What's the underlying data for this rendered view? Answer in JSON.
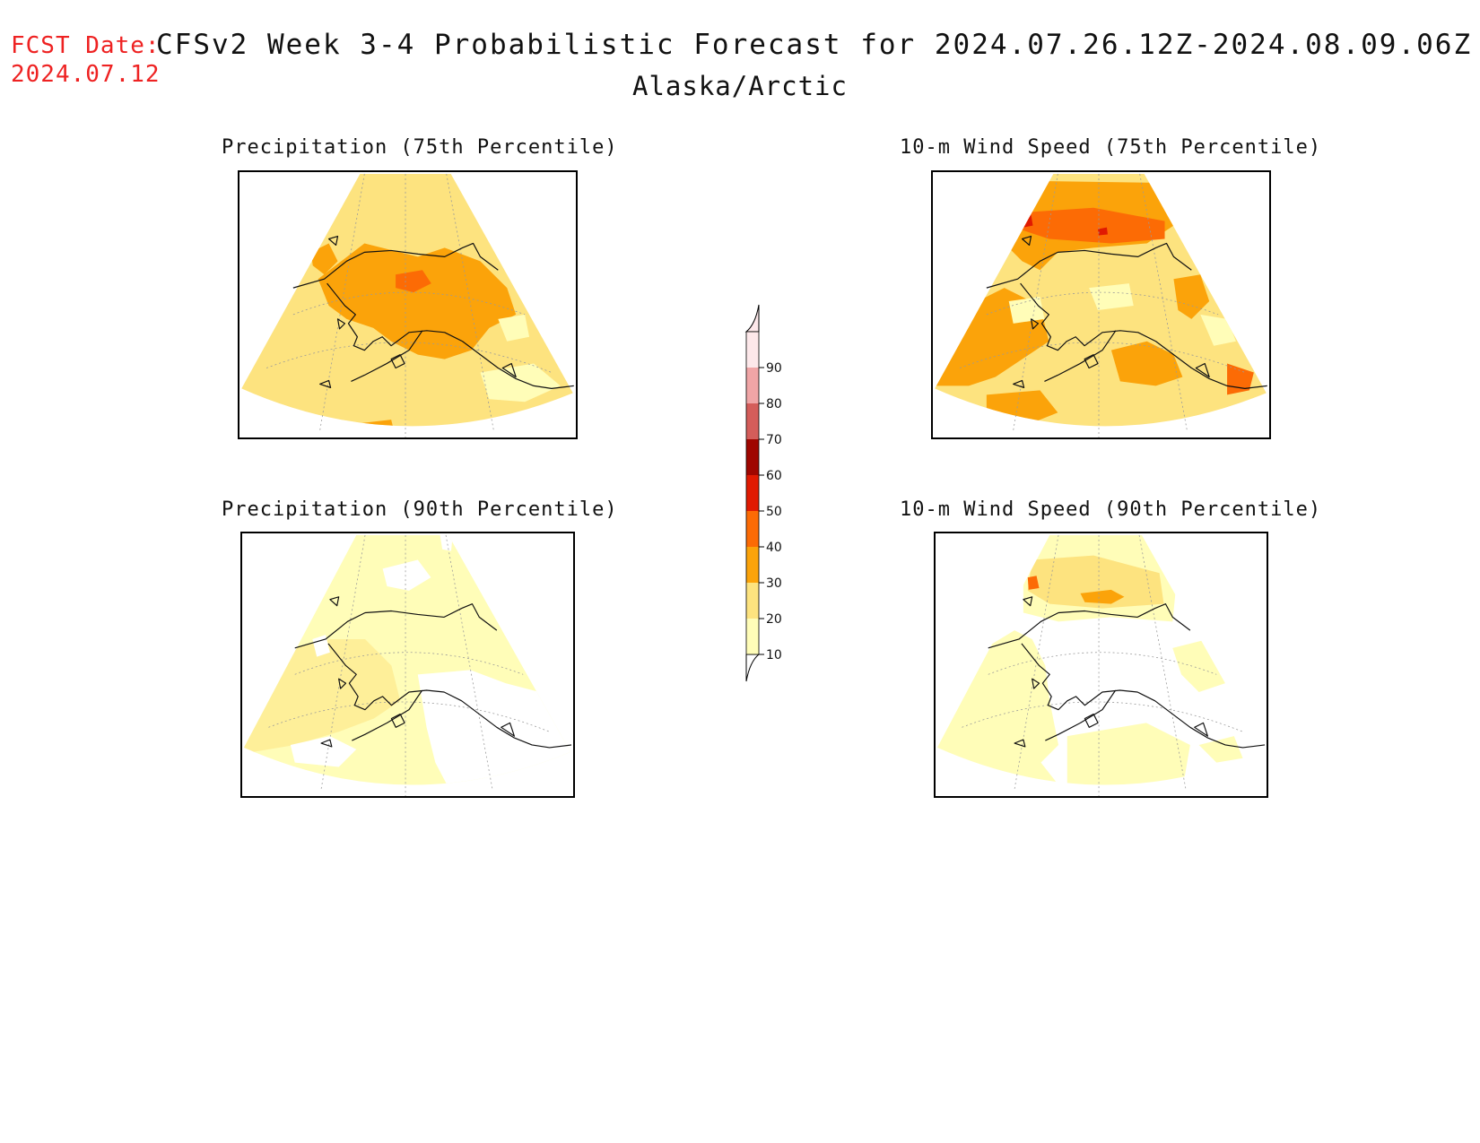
{
  "header": {
    "fcst_label": "FCST Date:",
    "fcst_date": "2024.07.12",
    "title": "CFSv2 Week 3-4 Probabilistic Forecast for 2024.07.26.12Z-2024.08.09.06Z",
    "subtitle": "Alaska/Arctic"
  },
  "panels": [
    {
      "title": "Precipitation (75th Percentile)",
      "dominant_category": "20-30",
      "max_category": "40-50"
    },
    {
      "title": "10-m Wind Speed (75th Percentile)",
      "dominant_category": "30-40",
      "max_category": "50-60"
    },
    {
      "title": "Precipitation (90th Percentile)",
      "dominant_category": "10-20",
      "max_category": "10-20"
    },
    {
      "title": "10-m Wind Speed (90th Percentile)",
      "dominant_category": "10-20",
      "max_category": "40-50"
    }
  ],
  "colorbar": {
    "levels": [
      "10",
      "20",
      "30",
      "40",
      "50",
      "60",
      "70",
      "80",
      "90"
    ],
    "colors": [
      "#fffdb8",
      "#fde37f",
      "#fba30a",
      "#fc6b05",
      "#e01a02",
      "#9f0600",
      "#d45d5a",
      "#f0a5a6",
      "#fde8ea"
    ],
    "below_color": "#ffffff"
  },
  "map_colors": {
    "coast": "#111111",
    "grid": "#9a9a9a",
    "c10": "#fffdb8",
    "c20": "#fde37f",
    "c30": "#fba30a",
    "c40": "#fc6b05",
    "c50": "#e01a02"
  }
}
